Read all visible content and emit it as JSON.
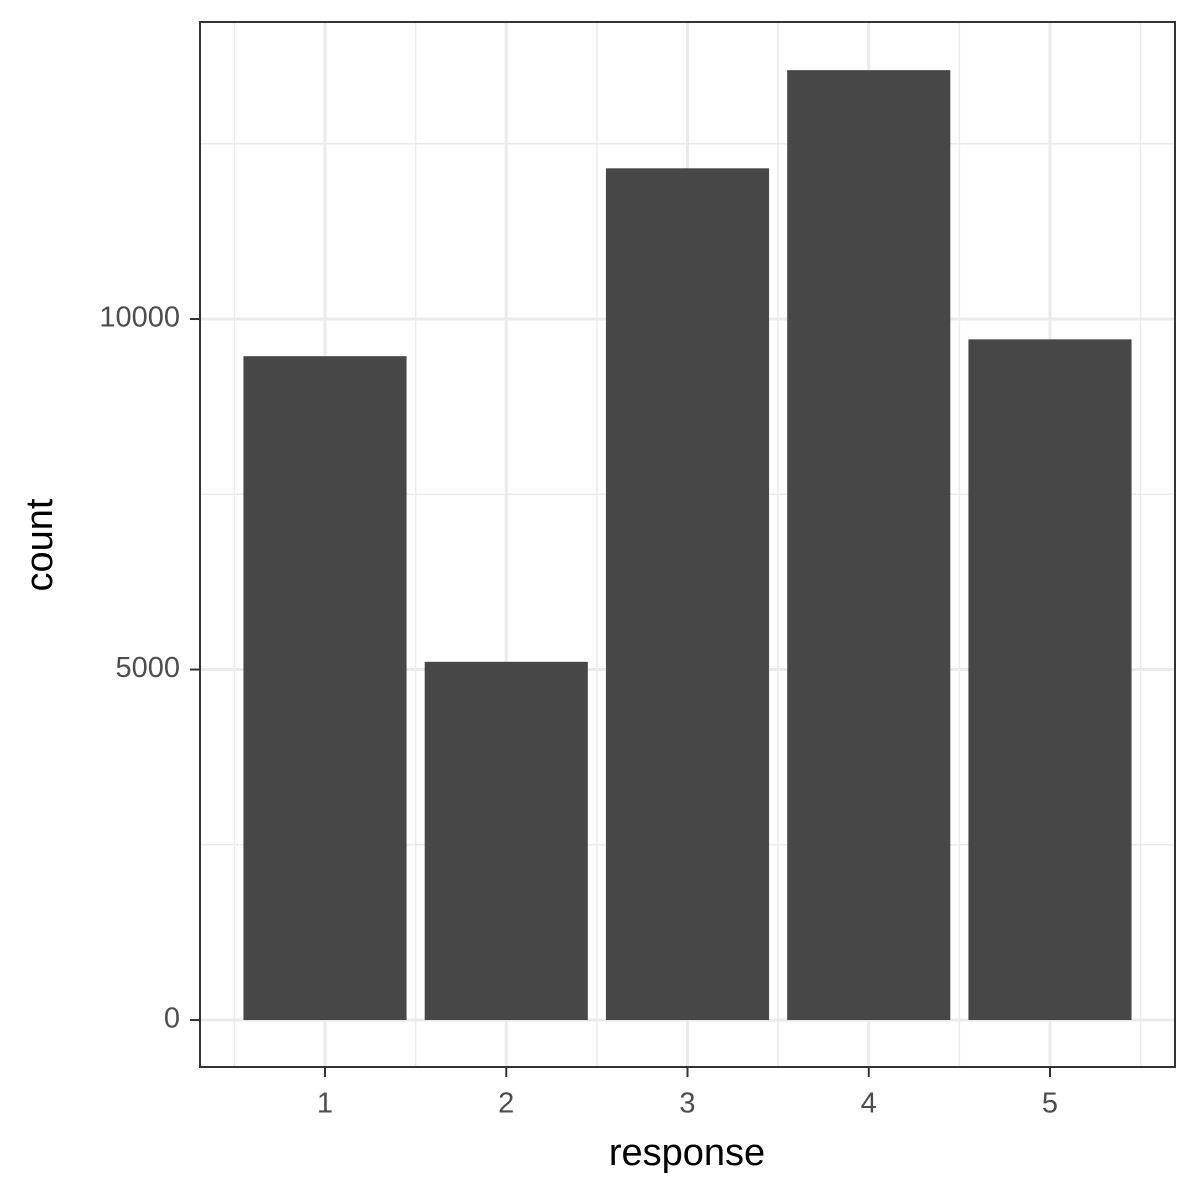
{
  "chart_data": {
    "type": "bar",
    "x_label": "response",
    "y_label": "count",
    "categories": [
      "1",
      "2",
      "3",
      "4",
      "5"
    ],
    "values": [
      9470,
      5110,
      12150,
      13550,
      9710
    ],
    "color": "#474747",
    "ylim": [
      -670,
      14237
    ],
    "yticks": [
      0,
      5000,
      10000
    ],
    "yminor": [
      2500,
      7500,
      12500
    ],
    "grid": true
  }
}
